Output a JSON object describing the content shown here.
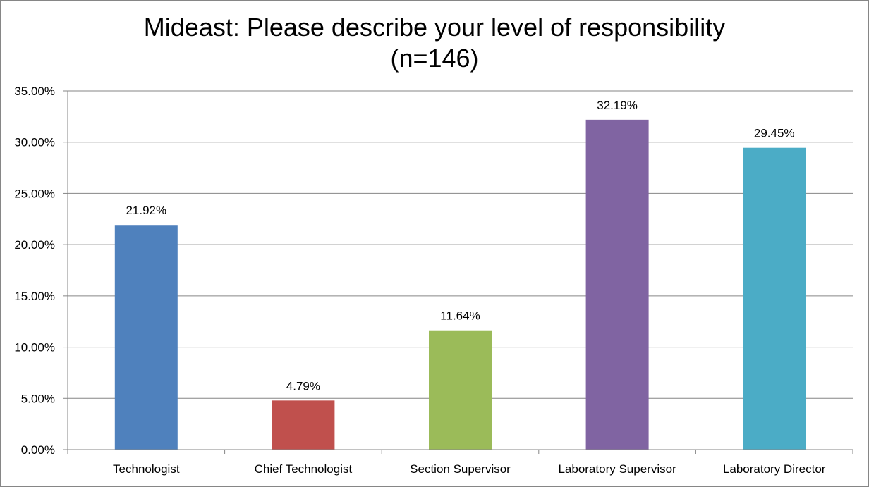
{
  "chart_data": {
    "type": "bar",
    "title": "Mideast: Please describe your level of responsibility",
    "subtitle": "(n=146)",
    "categories": [
      "Technologist",
      "Chief Technologist",
      "Section Supervisor",
      "Laboratory Supervisor",
      "Laboratory Director"
    ],
    "values": [
      21.92,
      4.79,
      11.64,
      32.19,
      29.45
    ],
    "data_labels": [
      "21.92%",
      "4.79%",
      "11.64%",
      "32.19%",
      "29.45%"
    ],
    "colors": [
      "#4F81BD",
      "#C0504D",
      "#9BBB59",
      "#8064A2",
      "#4BACC6"
    ],
    "ylim": [
      0,
      35
    ],
    "yticks": [
      0,
      5,
      10,
      15,
      20,
      25,
      30,
      35
    ],
    "ytick_labels": [
      "0.00%",
      "5.00%",
      "10.00%",
      "15.00%",
      "20.00%",
      "25.00%",
      "30.00%",
      "35.00%"
    ],
    "xlabel": "",
    "ylabel": "",
    "grid": true,
    "legend": "none"
  }
}
